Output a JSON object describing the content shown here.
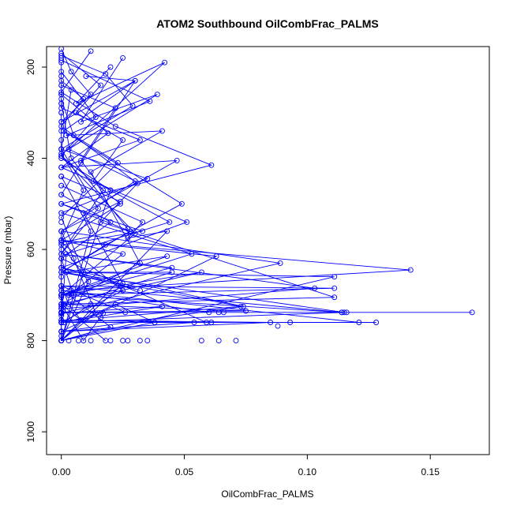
{
  "chart_data": {
    "type": "line",
    "title": "ATOM2 Southbound OilCombFrac_PALMS",
    "xlabel": "OilCombFrac_PALMS",
    "ylabel": "Pressure (mbar)",
    "xlim": [
      -0.006,
      0.174
    ],
    "ylim": [
      1050,
      155
    ],
    "y_reversed": true,
    "x_ticks": [
      0,
      0.05,
      0.1,
      0.15
    ],
    "x_tick_labels": [
      "0.00",
      "0.05",
      "0.10",
      "0.15"
    ],
    "y_ticks": [
      200,
      400,
      600,
      800,
      1000
    ],
    "y_tick_labels": [
      "200",
      "400",
      "600",
      "800",
      "1000"
    ],
    "grid": false,
    "line_color": "#0000ff",
    "marker": "open-circle",
    "series": [
      {
        "x": [
          0.0,
          0.004,
          0.012,
          0.0,
          0.03,
          0.008,
          0.0,
          0.02,
          0.0,
          0.005
        ],
        "y": [
          160,
          210,
          260,
          320,
          230,
          410,
          480,
          540,
          620,
          700
        ]
      },
      {
        "x": [
          0.0,
          0.016,
          0.006,
          0.025,
          0.013,
          0.044,
          0.002,
          0.0
        ],
        "y": [
          170,
          240,
          300,
          360,
          450,
          540,
          610,
          760
        ]
      },
      {
        "x": [
          0.0,
          0.018,
          0.029,
          0.0,
          0.035,
          0.0,
          0.053,
          0.0
        ],
        "y": [
          175,
          215,
          285,
          380,
          445,
          520,
          610,
          700
        ]
      },
      {
        "x": [
          0.012,
          0.0,
          0.022,
          0.061,
          0.0,
          0.028,
          0.0,
          0.073,
          0.016
        ],
        "y": [
          165,
          255,
          330,
          415,
          500,
          560,
          650,
          725,
          750
        ]
      },
      {
        "x": [
          0.025,
          0.008,
          0.039,
          0.0,
          0.009,
          0.0,
          0.063,
          0.0
        ],
        "y": [
          180,
          320,
          260,
          390,
          470,
          580,
          615,
          780
        ]
      },
      {
        "x": [
          0.0,
          0.036,
          0.002,
          0.041,
          0.012,
          0.032,
          0.0
        ],
        "y": [
          185,
          275,
          350,
          340,
          430,
          630,
          720
        ]
      },
      {
        "x": [
          0.0,
          0.0,
          0.032,
          0.0,
          0.047,
          0.009,
          0.025,
          0.0
        ],
        "y": [
          190,
          290,
          360,
          420,
          405,
          520,
          675,
          800
        ]
      },
      {
        "x": [
          0.02,
          0.006,
          0.042,
          0.003,
          0.03,
          0.0,
          0.089,
          0.0
        ],
        "y": [
          200,
          280,
          190,
          380,
          450,
          560,
          630,
          740
        ]
      },
      {
        "x": [
          0.0,
          0.014,
          0.0,
          0.024,
          0.0,
          0.142,
          0.004,
          0.0
        ],
        "y": [
          210,
          310,
          395,
          500,
          580,
          645,
          690,
          760
        ]
      },
      {
        "x": [
          0.01,
          0.03,
          0.001,
          0.049,
          0.018,
          0.0,
          0.111,
          0.0
        ],
        "y": [
          220,
          230,
          340,
          500,
          590,
          650,
          660,
          800
        ]
      },
      {
        "x": [
          0.0,
          0.009,
          0.0,
          0.031,
          0.016,
          0.111,
          0.0,
          0.018
        ],
        "y": [
          230,
          270,
          330,
          455,
          540,
          705,
          720,
          800
        ]
      },
      {
        "x": [
          0.0,
          0.022,
          0.008,
          0.017,
          0.0,
          0.103,
          0.0
        ],
        "y": [
          240,
          290,
          405,
          470,
          610,
          685,
          730
        ]
      },
      {
        "x": [
          0.004,
          0.0,
          0.015,
          0.0,
          0.045,
          0.0,
          0.057,
          0.0
        ],
        "y": [
          250,
          380,
          510,
          610,
          640,
          700,
          650,
          720
        ]
      },
      {
        "x": [
          0.0,
          0.019,
          0.0,
          0.051,
          0.0,
          0.074,
          0.0,
          0.0
        ],
        "y": [
          260,
          345,
          420,
          540,
          640,
          725,
          780,
          800
        ]
      },
      {
        "x": [
          0.0,
          0.005,
          0.023,
          0.0,
          0.009,
          0.045,
          0.0
        ],
        "y": [
          270,
          350,
          410,
          530,
          650,
          650,
          725
        ]
      },
      {
        "x": [
          0.0,
          0.004,
          0.027,
          0.0,
          0.025,
          0.0,
          0.041,
          0.0
        ],
        "y": [
          280,
          400,
          555,
          585,
          690,
          760,
          725,
          740
        ]
      },
      {
        "x": [
          0.0,
          0.0,
          0.03,
          0.0,
          0.0,
          0.0,
          0.167,
          0.0
        ],
        "y": [
          300,
          395,
          565,
          700,
          720,
          738,
          738,
          738
        ]
      },
      {
        "x": [
          0.0,
          0.115,
          0.0,
          0.128,
          0.0
        ],
        "y": [
          650,
          738,
          760,
          760,
          760
        ]
      },
      {
        "x": [
          0.0,
          0.121,
          0.059,
          0.0,
          0.0
        ],
        "y": [
          690,
          760,
          760,
          620,
          800
        ]
      },
      {
        "x": [
          0.0,
          0.114,
          0.0,
          0.111,
          0.0
        ],
        "y": [
          700,
          738,
          680,
          685,
          700
        ]
      },
      {
        "x": [
          0.0,
          0.06,
          0.0,
          0.0,
          0.001
        ],
        "y": [
          690,
          738,
          690,
          700,
          720
        ]
      },
      {
        "x": [
          0.0,
          0.026,
          0.0,
          0.0
        ],
        "y": [
          680,
          738,
          738,
          745
        ]
      },
      {
        "x": [
          0.0,
          0.001,
          0.0,
          0.0
        ],
        "y": [
          705,
          720,
          730,
          740
        ]
      },
      {
        "x": [
          0.0,
          0.075,
          0.0
        ],
        "y": [
          720,
          735,
          738
        ]
      },
      {
        "x": [
          0.0,
          0.032,
          0.002,
          0.043,
          0.0
        ],
        "y": [
          640,
          690,
          650,
          615,
          700
        ]
      },
      {
        "x": [
          0.0,
          0.009,
          0.017,
          0.001,
          0.012
        ],
        "y": [
          720,
          800,
          740,
          760,
          720
        ]
      },
      {
        "x": [
          0.0,
          0.003,
          0.008,
          0.022,
          0.038,
          0.0
        ],
        "y": [
          680,
          720,
          755,
          720,
          760,
          800
        ]
      },
      {
        "x": [
          0.0,
          0.0,
          0.054,
          0.0
        ],
        "y": [
          700,
          755,
          760,
          780
        ]
      },
      {
        "x": [
          0.0,
          0.0,
          0.085,
          0.0
        ],
        "y": [
          720,
          755,
          760,
          780
        ]
      },
      {
        "x": [
          0.0,
          0.025,
          0.003,
          0.02,
          0.0
        ],
        "y": [
          580,
          610,
          700,
          770,
          800
        ]
      },
      {
        "x": [
          0.0,
          0.005,
          0.014,
          0.0
        ],
        "y": [
          560,
          620,
          740,
          800
        ]
      },
      {
        "x": [
          0.0,
          0.033,
          0.027,
          0.043,
          0.0
        ],
        "y": [
          460,
          540,
          575,
          560,
          800
        ]
      },
      {
        "x": [
          0.0,
          0.033,
          0.0,
          0.011,
          0.0
        ],
        "y": [
          500,
          560,
          590,
          670,
          800
        ]
      },
      {
        "x": [
          0.0,
          0.024,
          0.0,
          0.0
        ],
        "y": [
          440,
          495,
          560,
          800
        ]
      },
      {
        "x": [
          0.0,
          0.012,
          0.0
        ],
        "y": [
          440,
          560,
          800
        ]
      },
      {
        "x": [
          0.0,
          0.02,
          0.0
        ],
        "y": [
          400,
          470,
          800
        ]
      }
    ],
    "scatter_points": {
      "x": [
        0.0,
        0.0,
        0.0,
        0.0,
        0.0,
        0.0,
        0.0,
        0.0,
        0.0,
        0.0,
        0.0,
        0.0,
        0.0,
        0.0,
        0.0,
        0.0,
        0.0,
        0.0,
        0.0,
        0.0,
        0.0,
        0.0,
        0.0,
        0.0,
        0.0,
        0.0,
        0.0,
        0.0,
        0.0,
        0.0,
        0.0,
        0.003,
        0.007,
        0.012,
        0.02,
        0.025,
        0.027,
        0.032,
        0.035,
        0.057,
        0.064,
        0.071,
        0.061,
        0.088,
        0.093,
        0.116,
        0.114,
        0.066,
        0.064
      ],
      "y": [
        180,
        220,
        240,
        260,
        280,
        300,
        320,
        340,
        360,
        380,
        420,
        440,
        460,
        480,
        500,
        520,
        540,
        560,
        580,
        600,
        620,
        640,
        660,
        680,
        700,
        720,
        740,
        760,
        780,
        790,
        800,
        800,
        800,
        800,
        800,
        800,
        800,
        800,
        800,
        800,
        800,
        800,
        760,
        768,
        760,
        738,
        738,
        738,
        738
      ]
    }
  }
}
